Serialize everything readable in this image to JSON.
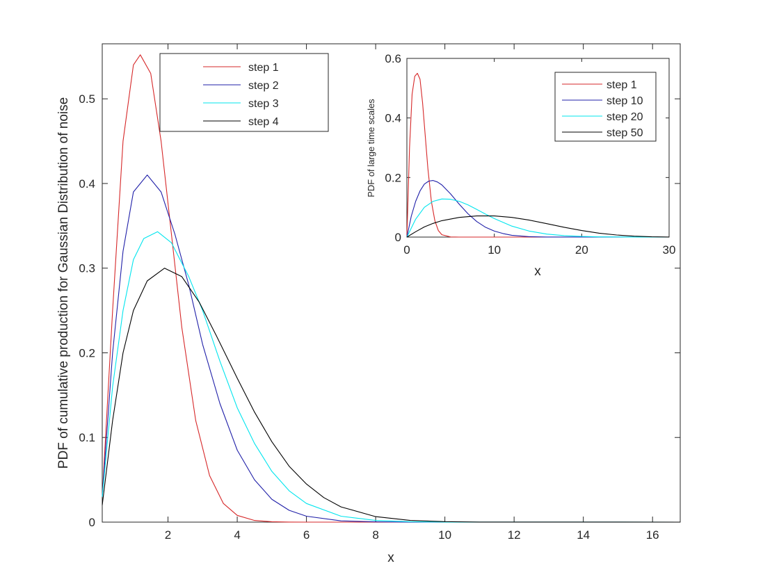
{
  "chart_data": [
    {
      "type": "line",
      "title": "",
      "xlabel": "x",
      "ylabel": "PDF of cumulative production for Gaussian Distribution of noise",
      "xlim": [
        0.1,
        16.8
      ],
      "ylim": [
        0,
        0.565
      ],
      "xticks": [
        2,
        4,
        6,
        8,
        10,
        12,
        14,
        16
      ],
      "yticks": [
        0,
        0.1,
        0.2,
        0.3,
        0.4,
        0.5
      ],
      "xtick_labels": [
        "2",
        "4",
        "6",
        "8",
        "10",
        "12",
        "14",
        "16"
      ],
      "ytick_labels": [
        "0",
        "0.1",
        "0.2",
        "0.3",
        "0.4",
        "0.5"
      ],
      "legend_position": "top-left",
      "grid": false,
      "series": [
        {
          "name": "step 1",
          "color": "#d62728",
          "x": [
            0.1,
            0.4,
            0.7,
            1.0,
            1.2,
            1.5,
            1.8,
            2.1,
            2.4,
            2.8,
            3.2,
            3.6,
            4.0,
            4.5,
            5.0,
            5.5,
            6.0,
            7.0,
            16.8
          ],
          "y": [
            0.03,
            0.25,
            0.45,
            0.54,
            0.552,
            0.53,
            0.45,
            0.34,
            0.23,
            0.12,
            0.055,
            0.022,
            0.008,
            0.002,
            0.0005,
            0.0001,
            0.0,
            0.0,
            0.0
          ]
        },
        {
          "name": "step 2",
          "color": "#1f1fa8",
          "x": [
            0.1,
            0.4,
            0.7,
            1.0,
            1.4,
            1.8,
            2.2,
            2.6,
            3.0,
            3.5,
            4.0,
            4.5,
            5.0,
            5.5,
            6.0,
            7.0,
            8.0,
            9.0,
            16.8
          ],
          "y": [
            0.03,
            0.2,
            0.32,
            0.39,
            0.41,
            0.39,
            0.34,
            0.28,
            0.21,
            0.14,
            0.085,
            0.05,
            0.027,
            0.014,
            0.007,
            0.0015,
            0.0003,
            0.0,
            0.0
          ]
        },
        {
          "name": "step 3",
          "color": "#00e5ee",
          "x": [
            0.1,
            0.4,
            0.7,
            1.0,
            1.3,
            1.7,
            2.1,
            2.6,
            3.0,
            3.5,
            4.0,
            4.5,
            5.0,
            5.5,
            6.0,
            7.0,
            8.0,
            9.0,
            10.0,
            16.8
          ],
          "y": [
            0.03,
            0.16,
            0.25,
            0.31,
            0.335,
            0.343,
            0.33,
            0.29,
            0.25,
            0.19,
            0.135,
            0.093,
            0.06,
            0.037,
            0.022,
            0.007,
            0.002,
            0.0005,
            0.0001,
            0.0
          ]
        },
        {
          "name": "step 4",
          "color": "#000000",
          "x": [
            0.1,
            0.4,
            0.7,
            1.0,
            1.4,
            1.9,
            2.4,
            2.9,
            3.4,
            4.0,
            4.5,
            5.0,
            5.5,
            6.0,
            6.5,
            7.0,
            8.0,
            9.0,
            10.0,
            11.0,
            16.8
          ],
          "y": [
            0.02,
            0.12,
            0.2,
            0.25,
            0.285,
            0.3,
            0.29,
            0.26,
            0.22,
            0.17,
            0.13,
            0.095,
            0.066,
            0.045,
            0.029,
            0.018,
            0.0065,
            0.002,
            0.0006,
            0.0001,
            0.0
          ]
        }
      ]
    },
    {
      "type": "line",
      "title": "",
      "xlabel": "x",
      "ylabel": "PDF of large time scales",
      "xlim": [
        0,
        30
      ],
      "ylim": [
        0,
        0.6
      ],
      "xticks": [
        0,
        10,
        20,
        30
      ],
      "yticks": [
        0,
        0.2,
        0.4,
        0.6
      ],
      "xtick_labels": [
        "0",
        "10",
        "20",
        "30"
      ],
      "ytick_labels": [
        "0",
        "0.2",
        "0.4",
        "0.6"
      ],
      "legend_position": "top-right",
      "grid": false,
      "series": [
        {
          "name": "step 1",
          "color": "#d62728",
          "x": [
            0,
            0.3,
            0.6,
            0.9,
            1.2,
            1.5,
            1.8,
            2.1,
            2.4,
            2.8,
            3.2,
            3.6,
            4.0,
            5.0,
            6.0,
            30.0
          ],
          "y": [
            0.0,
            0.3,
            0.48,
            0.54,
            0.55,
            0.53,
            0.45,
            0.34,
            0.23,
            0.12,
            0.055,
            0.022,
            0.008,
            0.0005,
            0.0,
            0.0
          ]
        },
        {
          "name": "step 10",
          "color": "#1f1fa8",
          "x": [
            0,
            0.5,
            1.0,
            1.5,
            2.0,
            2.5,
            3.0,
            3.5,
            4.0,
            5.0,
            6.0,
            7.0,
            8.0,
            9.0,
            10.0,
            11.0,
            12.0,
            14.0,
            16.0,
            30.0
          ],
          "y": [
            0.0,
            0.07,
            0.12,
            0.155,
            0.178,
            0.188,
            0.19,
            0.185,
            0.175,
            0.145,
            0.11,
            0.078,
            0.052,
            0.033,
            0.02,
            0.012,
            0.006,
            0.0015,
            0.0003,
            0.0
          ]
        },
        {
          "name": "step 20",
          "color": "#00e5ee",
          "x": [
            0,
            1.0,
            2.0,
            3.0,
            4.0,
            5.0,
            6.0,
            7.0,
            8.0,
            9.0,
            10.0,
            12.0,
            14.0,
            16.0,
            18.0,
            20.0,
            22.0,
            25.0,
            30.0
          ],
          "y": [
            0.0,
            0.06,
            0.1,
            0.12,
            0.128,
            0.127,
            0.12,
            0.108,
            0.093,
            0.077,
            0.062,
            0.037,
            0.02,
            0.01,
            0.005,
            0.002,
            0.0008,
            0.0002,
            0.0
          ]
        },
        {
          "name": "step 50",
          "color": "#000000",
          "x": [
            0,
            1.0,
            2.0,
            3.0,
            4.0,
            6.0,
            8.0,
            10.0,
            12.0,
            14.0,
            16.0,
            18.0,
            20.0,
            22.0,
            24.0,
            26.0,
            28.0,
            30.0
          ],
          "y": [
            0.0,
            0.018,
            0.034,
            0.046,
            0.055,
            0.066,
            0.071,
            0.071,
            0.066,
            0.057,
            0.045,
            0.033,
            0.022,
            0.013,
            0.007,
            0.003,
            0.001,
            0.0003
          ]
        }
      ]
    }
  ]
}
